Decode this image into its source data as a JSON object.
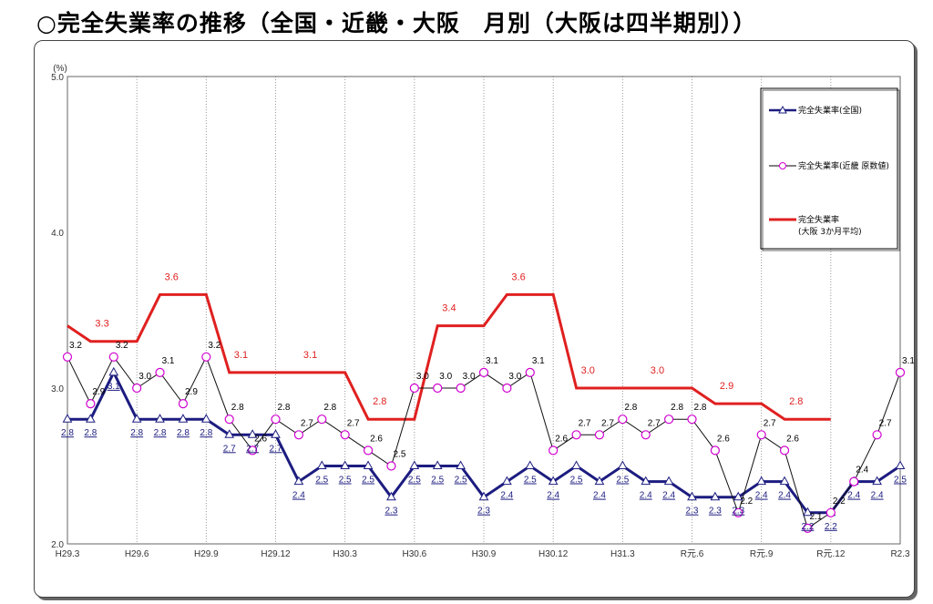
{
  "title": "○完全失業率の推移（全国・近畿・大阪　月別（大阪は四半期別））",
  "chart_data": {
    "type": "line",
    "unit": "(%)",
    "ylim": [
      2.0,
      5.0
    ],
    "y_ticks": [
      "2.0",
      "3.0",
      "4.0",
      "5.0"
    ],
    "x_tick_labels": [
      "H29.3",
      "H29.6",
      "H29.9",
      "H29.12",
      "H30.3",
      "H30.6",
      "H30.9",
      "H30.12",
      "H31.3",
      "R元.6",
      "R元.9",
      "R元.12",
      "R2.3"
    ],
    "x_count": 37,
    "series": [
      {
        "name": "完全失業率(全国)",
        "color": "#1c1c80",
        "values": [
          2.8,
          2.8,
          3.1,
          2.8,
          2.8,
          2.8,
          2.8,
          2.7,
          2.7,
          2.7,
          2.4,
          2.5,
          2.5,
          2.5,
          2.3,
          2.5,
          2.5,
          2.5,
          2.3,
          2.4,
          2.5,
          2.4,
          2.5,
          2.4,
          2.5,
          2.4,
          2.4,
          2.3,
          2.3,
          2.3,
          2.4,
          2.4,
          2.2,
          2.2,
          2.4,
          2.4,
          2.5
        ]
      },
      {
        "name": "完全失業率(近畿 原数値)",
        "color": "#d000d0",
        "values": [
          3.2,
          2.9,
          3.2,
          3.0,
          3.1,
          2.9,
          3.2,
          2.8,
          2.6,
          2.8,
          2.7,
          2.8,
          2.7,
          2.6,
          2.5,
          3.0,
          3.0,
          3.0,
          3.1,
          3.0,
          3.1,
          2.6,
          2.7,
          2.7,
          2.8,
          2.7,
          2.8,
          2.8,
          2.6,
          2.2,
          2.7,
          2.6,
          2.1,
          2.2,
          2.4,
          2.7,
          3.1
        ]
      },
      {
        "name": "完全失業率",
        "name_line2": "(大阪 3か月平均)",
        "color": "#e02020",
        "values": [
          3.4,
          3.3,
          3.3,
          3.3,
          3.6,
          3.6,
          3.6,
          3.1,
          3.1,
          3.1,
          3.1,
          3.1,
          3.1,
          2.8,
          2.8,
          2.8,
          3.4,
          3.4,
          3.4,
          3.6,
          3.6,
          3.6,
          3.0,
          3.0,
          3.0,
          3.0,
          3.0,
          3.0,
          2.9,
          2.9,
          2.9,
          2.8,
          2.8,
          2.8,
          null,
          null,
          null
        ],
        "labels": [
          {
            "i": 1.5,
            "text": "3.3"
          },
          {
            "i": 4.5,
            "text": "3.6"
          },
          {
            "i": 7.5,
            "text": "3.1"
          },
          {
            "i": 10.5,
            "text": "3.1"
          },
          {
            "i": 13.5,
            "text": "2.8"
          },
          {
            "i": 16.5,
            "text": "3.4"
          },
          {
            "i": 19.5,
            "text": "3.6"
          },
          {
            "i": 22.5,
            "text": "3.0"
          },
          {
            "i": 25.5,
            "text": "3.0"
          },
          {
            "i": 28.5,
            "text": "2.9"
          },
          {
            "i": 31.5,
            "text": "2.8"
          }
        ]
      }
    ],
    "grid": true,
    "legend_position": "top-right"
  }
}
